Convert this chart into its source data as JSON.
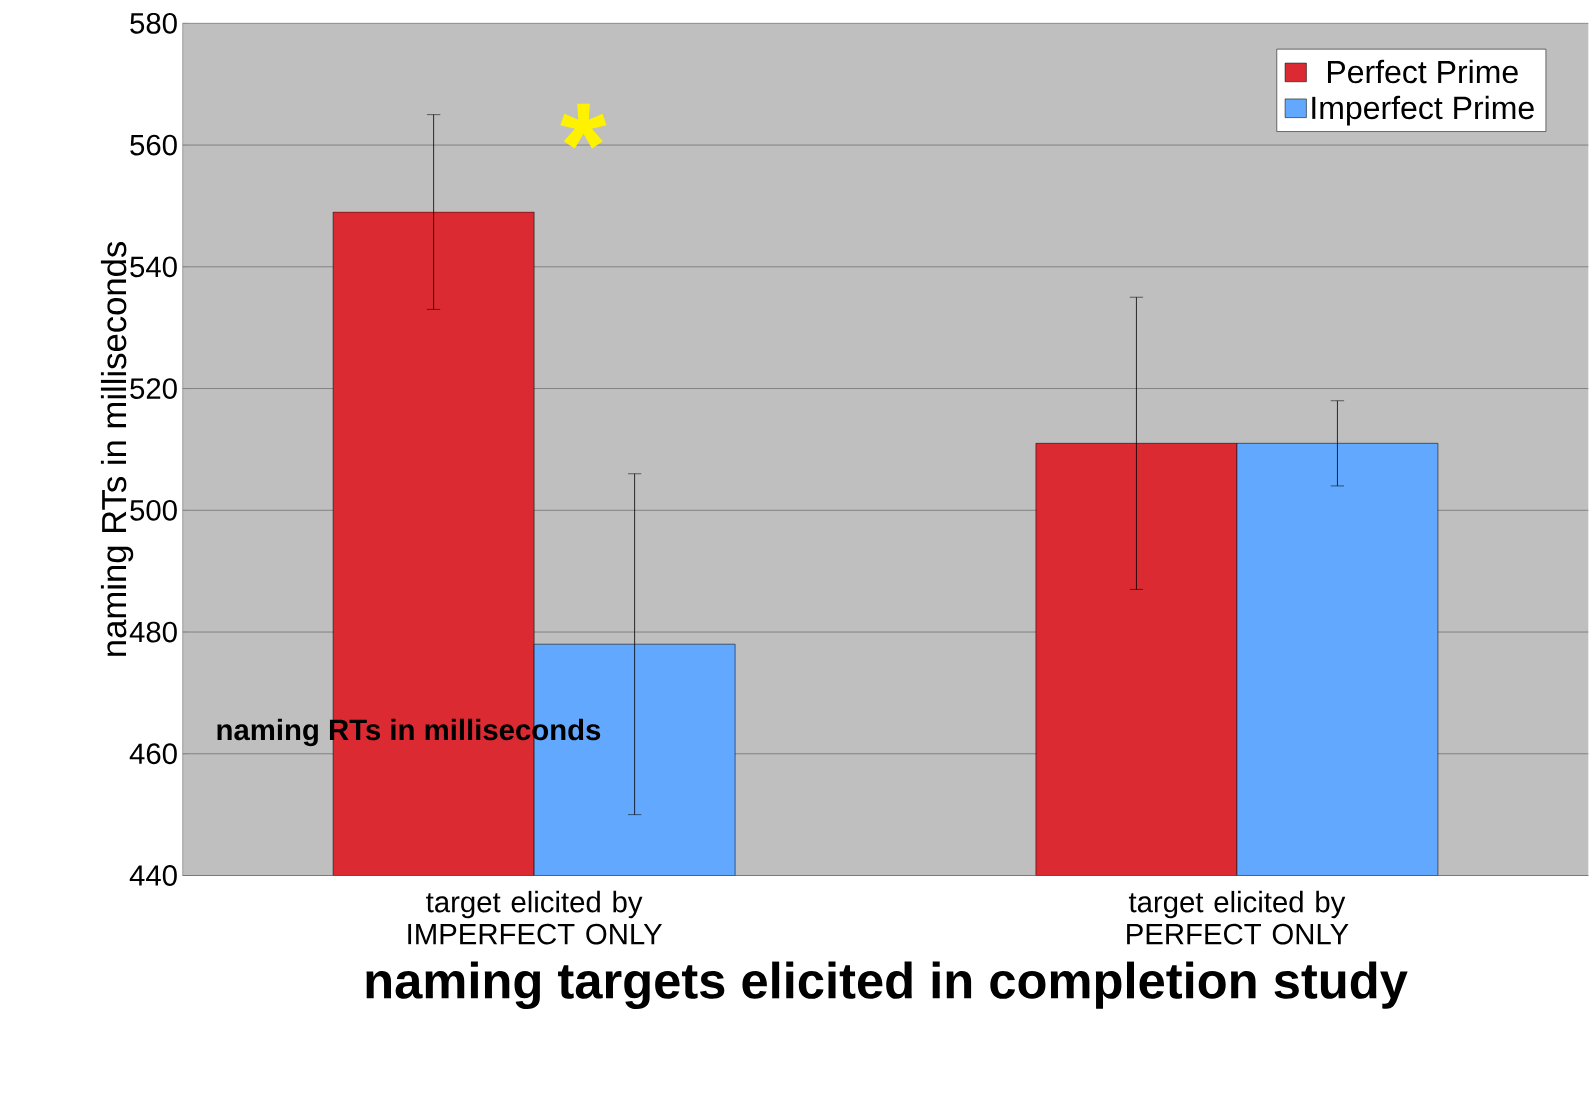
{
  "chart_data": {
    "type": "bar",
    "xlabel": "**naming targets elicited in completion study**",
    "ylabel": "naming RTs in milliseconds",
    "categories": [
      "target elicited by IMPERFECT ONLY",
      "target elicited by PERFECT ONLY"
    ],
    "series": [
      {
        "name": "Perfect Prime",
        "color": "#dc2a32",
        "values": [
          549,
          511
        ],
        "errors": [
          16,
          24
        ]
      },
      {
        "name": "Imperfect Prime",
        "color": "#62a8fe",
        "values": [
          478,
          511
        ],
        "errors": [
          28,
          7
        ]
      }
    ],
    "ylim": [
      440,
      580
    ],
    "yticks": [
      440,
      460,
      480,
      500,
      520,
      540,
      560,
      580
    ],
    "grid": "y",
    "legend": "top right",
    "annotations": [
      "*",
      "**naming RTs in milliseconds**"
    ]
  }
}
